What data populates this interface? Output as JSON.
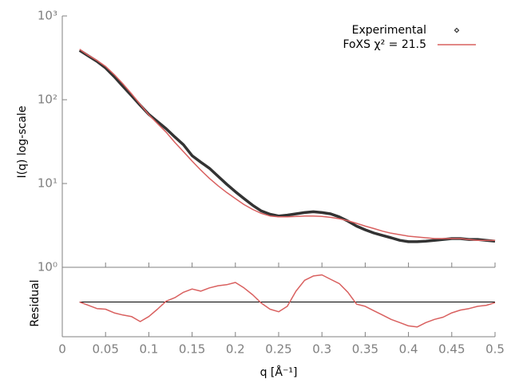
{
  "chart_data": [
    {
      "type": "line",
      "ylabel": "I(q) log-scale",
      "log_y": true,
      "xlim": [
        0,
        0.5
      ],
      "ylim": [
        1,
        1000
      ],
      "yticks": [
        {
          "value": 1,
          "label": "10⁰"
        },
        {
          "value": 10,
          "label": "10¹"
        },
        {
          "value": 100,
          "label": "10²"
        },
        {
          "value": 1000,
          "label": "10³"
        }
      ],
      "legend": "top-right",
      "x": [
        0.02,
        0.03,
        0.04,
        0.05,
        0.06,
        0.07,
        0.08,
        0.09,
        0.1,
        0.11,
        0.12,
        0.13,
        0.14,
        0.15,
        0.16,
        0.17,
        0.18,
        0.19,
        0.2,
        0.21,
        0.22,
        0.23,
        0.24,
        0.25,
        0.26,
        0.27,
        0.28,
        0.29,
        0.3,
        0.31,
        0.32,
        0.33,
        0.34,
        0.35,
        0.36,
        0.37,
        0.38,
        0.39,
        0.4,
        0.41,
        0.42,
        0.43,
        0.44,
        0.45,
        0.46,
        0.47,
        0.48,
        0.49,
        0.5
      ],
      "series": [
        {
          "name": "Experimental",
          "color": "#333333",
          "marker": "points",
          "values": [
            389,
            334,
            287,
            240,
            189,
            145,
            112,
            86,
            67,
            55,
            45,
            36,
            29,
            21.5,
            18,
            15.2,
            12.2,
            9.8,
            8.0,
            6.6,
            5.5,
            4.7,
            4.3,
            4.1,
            4.2,
            4.35,
            4.5,
            4.6,
            4.5,
            4.35,
            4.0,
            3.56,
            3.1,
            2.8,
            2.57,
            2.4,
            2.25,
            2.1,
            2.02,
            2.02,
            2.05,
            2.1,
            2.15,
            2.2,
            2.2,
            2.15,
            2.15,
            2.1,
            2.05
          ]
        },
        {
          "name": "FoXS χ² = 21.5",
          "color": "#d9605f",
          "marker": "line",
          "values": [
            400,
            340,
            295,
            250,
            200,
            155,
            118,
            88,
            66,
            52,
            41,
            31,
            24,
            18.5,
            14.5,
            11.5,
            9.4,
            7.8,
            6.6,
            5.6,
            4.9,
            4.4,
            4.1,
            4.0,
            4.0,
            4.05,
            4.1,
            4.1,
            4.05,
            3.95,
            3.8,
            3.6,
            3.35,
            3.1,
            2.9,
            2.7,
            2.55,
            2.45,
            2.35,
            2.3,
            2.25,
            2.2,
            2.2,
            2.2,
            2.2,
            2.15,
            2.1,
            2.1,
            2.1
          ]
        }
      ]
    },
    {
      "type": "line",
      "ylabel": "Residual",
      "xlabel": "q [Å⁻¹]",
      "xlim": [
        0,
        0.5
      ],
      "ylim": [
        -1.6,
        1.6
      ],
      "xticks": [
        0,
        0.05,
        0.1,
        0.15,
        0.2,
        0.25,
        0.3,
        0.35,
        0.4,
        0.45,
        0.5
      ],
      "reference_line": 0,
      "x": [
        0.02,
        0.03,
        0.04,
        0.05,
        0.06,
        0.07,
        0.08,
        0.09,
        0.1,
        0.11,
        0.12,
        0.13,
        0.14,
        0.15,
        0.16,
        0.17,
        0.18,
        0.19,
        0.2,
        0.21,
        0.22,
        0.23,
        0.24,
        0.25,
        0.26,
        0.27,
        0.28,
        0.29,
        0.3,
        0.31,
        0.32,
        0.33,
        0.34,
        0.35,
        0.36,
        0.37,
        0.38,
        0.39,
        0.4,
        0.41,
        0.42,
        0.43,
        0.44,
        0.45,
        0.46,
        0.47,
        0.48,
        0.49,
        0.5
      ],
      "series": [
        {
          "color": "#d9605f",
          "values": [
            0,
            -0.15,
            -0.3,
            -0.33,
            -0.5,
            -0.6,
            -0.67,
            -0.9,
            -0.67,
            -0.33,
            0.04,
            0.2,
            0.45,
            0.6,
            0.5,
            0.65,
            0.75,
            0.8,
            0.9,
            0.65,
            0.33,
            -0.05,
            -0.33,
            -0.45,
            -0.2,
            0.5,
            1.0,
            1.2,
            1.25,
            1.05,
            0.85,
            0.45,
            -0.1,
            -0.2,
            -0.4,
            -0.6,
            -0.8,
            -0.95,
            -1.1,
            -1.15,
            -0.95,
            -0.8,
            -0.7,
            -0.5,
            -0.37,
            -0.3,
            -0.2,
            -0.15,
            -0.03
          ]
        }
      ]
    }
  ]
}
